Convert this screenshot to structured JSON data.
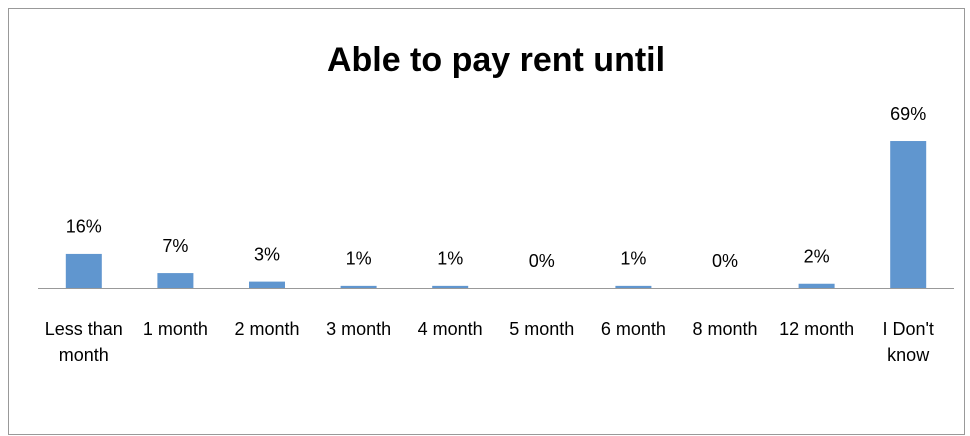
{
  "chart_data": {
    "type": "bar",
    "title": "Able to pay rent until",
    "categories": [
      "Less than month",
      "1 month",
      "2 month",
      "3 month",
      "4 month",
      "5 month",
      "6 month",
      "8 month",
      "12 month",
      "I Don't know"
    ],
    "values": [
      16,
      7,
      3,
      1,
      1,
      0,
      1,
      0,
      2,
      69
    ],
    "value_labels": [
      "16%",
      "7%",
      "3%",
      "1%",
      "1%",
      "0%",
      "1%",
      "0%",
      "2%",
      "69%"
    ],
    "color": "#6096cf"
  }
}
